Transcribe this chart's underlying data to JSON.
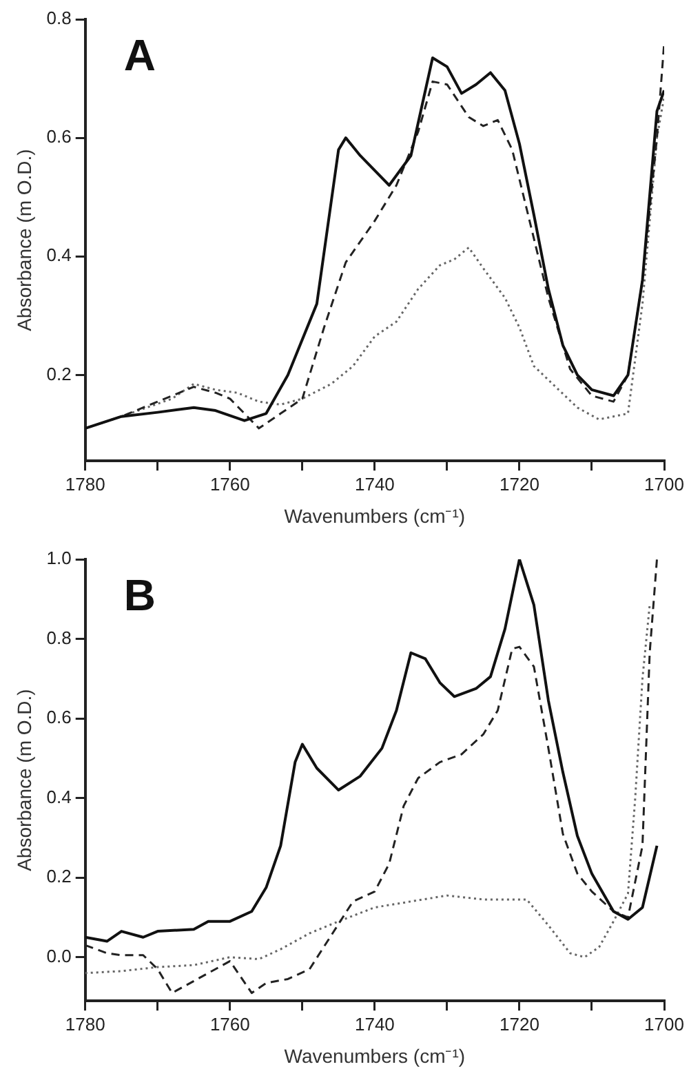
{
  "chart_data": [
    {
      "type": "line",
      "annotations": [
        "A"
      ],
      "xlabel": "Wavenumbers (cm⁻¹)",
      "ylabel": "Absorbance (m O.D.)",
      "xlim": [
        1780,
        1700
      ],
      "ylim": [
        0.055,
        0.8
      ],
      "xticks": [
        1780,
        {
          "value": 1770,
          "label": null
        },
        1760,
        {
          "value": 1750,
          "label": null
        },
        1740,
        {
          "value": 1730,
          "label": null
        },
        1720,
        {
          "value": 1710,
          "label": null
        },
        1700
      ],
      "yticks": [
        0.2,
        0.4,
        0.6,
        0.8
      ],
      "grid": false,
      "legend": false,
      "marker": "none",
      "series": [
        {
          "color": "#111111",
          "line_style": "solid",
          "x": [
            1780,
            1775,
            1770,
            1765,
            1762,
            1758,
            1755,
            1752,
            1748,
            1745,
            1744,
            1742,
            1738,
            1735,
            1733,
            1732,
            1730,
            1728,
            1726,
            1724,
            1722,
            1720,
            1718,
            1716,
            1714,
            1712,
            1710,
            1707,
            1705,
            1703,
            1701,
            1700
          ],
          "values": [
            0.11,
            0.13,
            0.137,
            0.145,
            0.14,
            0.123,
            0.135,
            0.2,
            0.32,
            0.58,
            0.6,
            0.57,
            0.52,
            0.57,
            0.68,
            0.735,
            0.72,
            0.675,
            0.69,
            0.71,
            0.68,
            0.59,
            0.47,
            0.345,
            0.25,
            0.2,
            0.175,
            0.165,
            0.2,
            0.36,
            0.645,
            0.68
          ]
        },
        {
          "color": "#222222",
          "line_style": "dashed",
          "x": [
            1780,
            1775,
            1768,
            1765,
            1762,
            1760,
            1756,
            1753,
            1750,
            1747,
            1744,
            1740,
            1737,
            1734,
            1732,
            1730,
            1727,
            1725,
            1723,
            1721,
            1719,
            1716,
            1713,
            1710,
            1707,
            1705,
            1703,
            1701,
            1700
          ],
          "values": [
            0.11,
            0.13,
            0.165,
            0.18,
            0.17,
            0.16,
            0.11,
            0.135,
            0.16,
            0.28,
            0.39,
            0.46,
            0.52,
            0.61,
            0.695,
            0.69,
            0.635,
            0.62,
            0.63,
            0.58,
            0.48,
            0.33,
            0.21,
            0.165,
            0.155,
            0.2,
            0.36,
            0.6,
            0.76
          ]
        },
        {
          "color": "#666666",
          "line_style": "dotted",
          "x": [
            1780,
            1775,
            1768,
            1765,
            1762,
            1759,
            1756,
            1753,
            1750,
            1746,
            1743,
            1740,
            1737,
            1734,
            1731,
            1729,
            1727,
            1725,
            1722,
            1720,
            1718,
            1715,
            1712,
            1709,
            1705,
            1703,
            1701,
            1700
          ],
          "values": [
            0.11,
            0.13,
            0.16,
            0.185,
            0.175,
            0.17,
            0.155,
            0.15,
            0.16,
            0.185,
            0.215,
            0.265,
            0.29,
            0.345,
            0.385,
            0.395,
            0.415,
            0.38,
            0.33,
            0.28,
            0.215,
            0.18,
            0.145,
            0.125,
            0.135,
            0.32,
            0.6,
            0.67
          ]
        }
      ]
    },
    {
      "type": "line",
      "annotations": [
        "B"
      ],
      "xlabel": "Wavenumbers (cm⁻¹)",
      "ylabel": "Absorbance (m O.D.)",
      "xlim": [
        1780,
        1700
      ],
      "ylim": [
        -0.11,
        1.0
      ],
      "xticks": [
        1780,
        {
          "value": 1770,
          "label": null
        },
        1760,
        {
          "value": 1750,
          "label": null
        },
        1740,
        {
          "value": 1730,
          "label": null
        },
        1720,
        {
          "value": 1710,
          "label": null
        },
        1700
      ],
      "yticks": [
        {
          "value": 0,
          "label": "0.0"
        },
        0.2,
        0.4,
        0.6,
        0.8,
        {
          "value": 1,
          "label": "1.0"
        }
      ],
      "grid": false,
      "legend": false,
      "marker": "none",
      "series": [
        {
          "color": "#111111",
          "line_style": "solid",
          "x": [
            1780,
            1777,
            1775,
            1772,
            1770,
            1765,
            1763,
            1760,
            1757,
            1755,
            1753,
            1751,
            1750,
            1748,
            1745,
            1742,
            1739,
            1737,
            1735,
            1733,
            1731,
            1729,
            1726,
            1724,
            1722,
            1720,
            1718,
            1716,
            1714,
            1712,
            1710,
            1707,
            1705,
            1703,
            1701
          ],
          "values": [
            0.05,
            0.04,
            0.065,
            0.05,
            0.065,
            0.07,
            0.09,
            0.09,
            0.115,
            0.175,
            0.28,
            0.49,
            0.535,
            0.475,
            0.42,
            0.455,
            0.525,
            0.62,
            0.765,
            0.75,
            0.69,
            0.655,
            0.675,
            0.705,
            0.825,
            1.0,
            0.885,
            0.645,
            0.465,
            0.305,
            0.21,
            0.115,
            0.095,
            0.125,
            0.28
          ]
        },
        {
          "color": "#222222",
          "line_style": "dashed",
          "x": [
            1780,
            1777,
            1775,
            1772,
            1770,
            1768,
            1765,
            1762,
            1760,
            1757,
            1755,
            1752,
            1749,
            1746,
            1743,
            1740,
            1738,
            1736,
            1734,
            1731,
            1728,
            1725,
            1723,
            1721,
            1720,
            1718,
            1716,
            1714,
            1712,
            1710,
            1707,
            1705,
            1703,
            1702,
            1701
          ],
          "values": [
            0.03,
            0.01,
            0.005,
            0.005,
            -0.03,
            -0.09,
            -0.06,
            -0.03,
            -0.01,
            -0.09,
            -0.065,
            -0.055,
            -0.03,
            0.055,
            0.14,
            0.165,
            0.235,
            0.38,
            0.45,
            0.49,
            0.51,
            0.56,
            0.62,
            0.775,
            0.78,
            0.73,
            0.525,
            0.31,
            0.21,
            0.165,
            0.115,
            0.1,
            0.28,
            0.765,
            1.0
          ]
        },
        {
          "color": "#666666",
          "line_style": "dotted",
          "x": [
            1780,
            1775,
            1770,
            1765,
            1760,
            1756,
            1753,
            1749,
            1745,
            1740,
            1735,
            1730,
            1725,
            1719,
            1716,
            1713,
            1711,
            1709,
            1707,
            1705,
            1704,
            1703,
            1702
          ],
          "values": [
            -0.04,
            -0.035,
            -0.025,
            -0.02,
            0.0,
            -0.005,
            0.02,
            0.06,
            0.09,
            0.125,
            0.14,
            0.155,
            0.145,
            0.145,
            0.08,
            0.01,
            0.0,
            0.025,
            0.09,
            0.16,
            0.4,
            0.7,
            0.885
          ]
        }
      ]
    }
  ]
}
